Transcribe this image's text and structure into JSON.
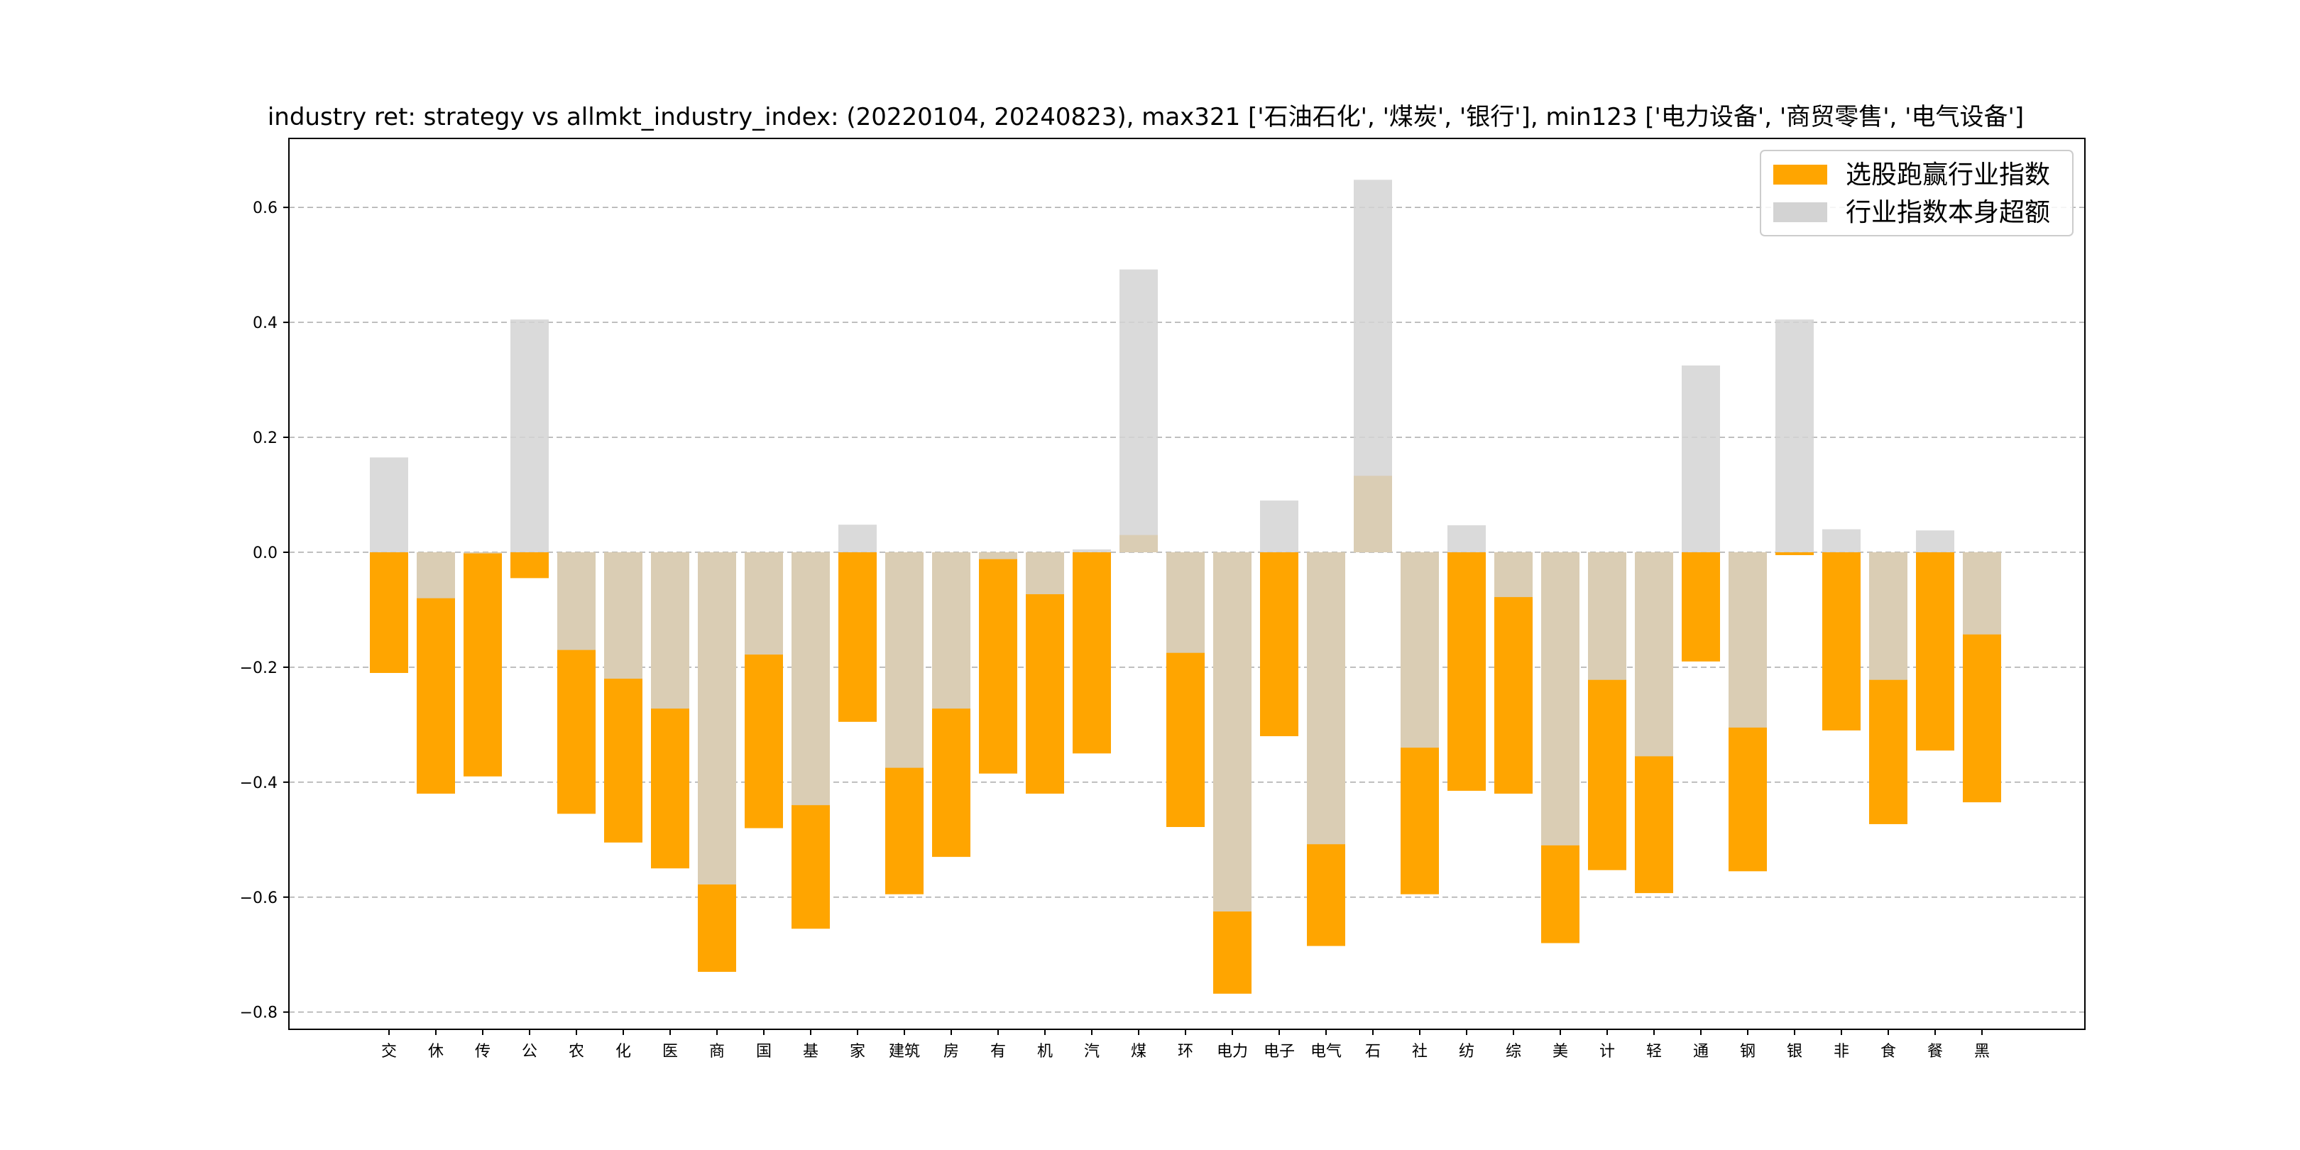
{
  "chart_data": {
    "type": "bar",
    "title": "industry ret: strategy vs allmkt_industry_index: (20220104, 20240823), max321 ['石油石化', '煤炭', '银行'], min123 ['电力设备', '商贸零售', '电气设备']",
    "xlabel": "",
    "ylabel": "",
    "ylim": [
      -0.83,
      0.72
    ],
    "yticks": [
      -0.8,
      -0.6,
      -0.4,
      -0.2,
      0.0,
      0.2,
      0.4,
      0.6
    ],
    "ytick_labels": [
      "−0.8",
      "−0.6",
      "−0.4",
      "−0.2",
      "0.0",
      "0.2",
      "0.4",
      "0.6"
    ],
    "grid": true,
    "legend_position": "top-right",
    "categories": [
      "交",
      "休",
      "传",
      "公",
      "农",
      "化",
      "医",
      "商",
      "国",
      "基",
      "家",
      "建筑",
      "房",
      "有",
      "机",
      "汽",
      "煤",
      "环",
      "电力",
      "电子",
      "电气",
      "石",
      "社",
      "纺",
      "综",
      "美",
      "计",
      "轻",
      "通",
      "钢",
      "银",
      "非",
      "食",
      "餐",
      "黑"
    ],
    "series": [
      {
        "name": "选股跑赢行业指数",
        "color": "#ffa500",
        "values": [
          -0.21,
          -0.42,
          -0.39,
          -0.045,
          -0.455,
          -0.505,
          -0.55,
          -0.73,
          -0.48,
          -0.655,
          -0.295,
          -0.595,
          -0.53,
          -0.385,
          -0.42,
          -0.35,
          0.03,
          -0.478,
          -0.768,
          -0.32,
          -0.685,
          0.133,
          -0.595,
          -0.415,
          -0.42,
          -0.68,
          -0.553,
          -0.593,
          -0.19,
          -0.555,
          -0.005,
          -0.31,
          -0.473,
          -0.345,
          -0.435
        ]
      },
      {
        "name": "行业指数本身超额",
        "color": "#d3d3d3",
        "values": [
          0.165,
          -0.08,
          -0.002,
          0.405,
          -0.17,
          -0.22,
          -0.272,
          -0.578,
          -0.178,
          -0.44,
          0.048,
          -0.375,
          -0.272,
          -0.012,
          -0.073,
          0.005,
          0.492,
          -0.175,
          -0.625,
          0.09,
          -0.508,
          0.648,
          -0.34,
          0.047,
          -0.078,
          -0.51,
          -0.222,
          -0.355,
          0.325,
          -0.305,
          0.405,
          0.04,
          -0.222,
          0.038,
          -0.143
        ]
      }
    ]
  }
}
